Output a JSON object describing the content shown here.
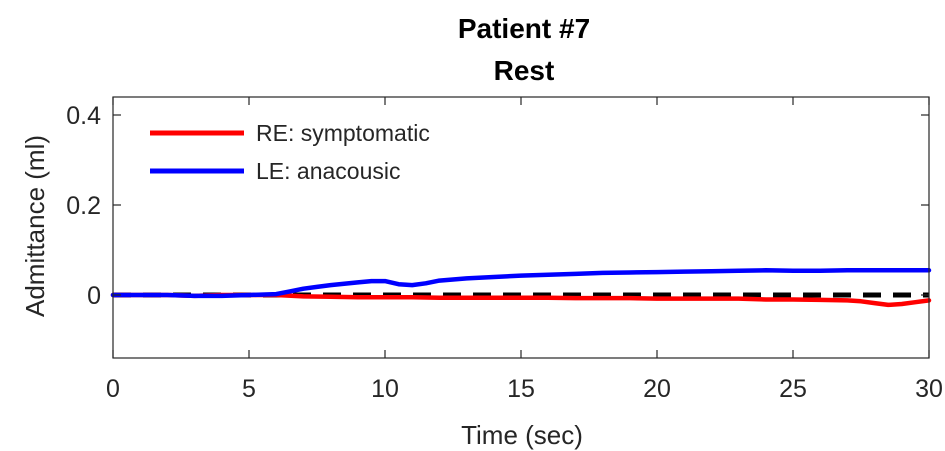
{
  "chart_data": {
    "type": "line",
    "title": "Patient #7",
    "subtitle": "Rest",
    "xlabel": "Time (sec)",
    "ylabel": "Admittance (ml)",
    "xlim": [
      0,
      30
    ],
    "ylim": [
      -0.14,
      0.44
    ],
    "xticks": [
      0,
      5,
      10,
      15,
      20,
      25,
      30
    ],
    "xtick_labels": [
      "0",
      "5",
      "10",
      "15",
      "20",
      "25",
      "30"
    ],
    "yticks": [
      0,
      0.2,
      0.4
    ],
    "ytick_labels": [
      "0",
      "0.2",
      "0.4"
    ],
    "grid": false,
    "legend_position": "top-left",
    "reference_line": {
      "y": 0,
      "style": "dashed",
      "color": "#000000"
    },
    "series": [
      {
        "name": "RE: symptomatic",
        "color": "#ff0000",
        "x": [
          0,
          1,
          2,
          3,
          4,
          5,
          6,
          7,
          8,
          9,
          10,
          11,
          12,
          13,
          14,
          15,
          16,
          17,
          18,
          19,
          20,
          21,
          22,
          23,
          24,
          25,
          26,
          27,
          27.5,
          28,
          28.5,
          29,
          29.5,
          30
        ],
        "y": [
          0,
          0,
          0,
          -0.002,
          0,
          0,
          0,
          -0.003,
          -0.004,
          -0.005,
          -0.005,
          -0.005,
          -0.006,
          -0.006,
          -0.006,
          -0.006,
          -0.006,
          -0.007,
          -0.007,
          -0.007,
          -0.008,
          -0.008,
          -0.008,
          -0.008,
          -0.01,
          -0.01,
          -0.011,
          -0.012,
          -0.014,
          -0.018,
          -0.022,
          -0.02,
          -0.016,
          -0.012
        ]
      },
      {
        "name": "LE: anacousic",
        "color": "#0000ff",
        "x": [
          0,
          1,
          2,
          3,
          4,
          5,
          6,
          6.5,
          7,
          7.5,
          8,
          8.5,
          9,
          9.5,
          10,
          10.5,
          11,
          11.5,
          12,
          13,
          14,
          15,
          16,
          17,
          18,
          19,
          20,
          21,
          22,
          23,
          24,
          25,
          26,
          27,
          28,
          29,
          30
        ],
        "y": [
          0,
          0,
          0,
          -0.002,
          -0.002,
          0,
          0.002,
          0.008,
          0.014,
          0.018,
          0.022,
          0.025,
          0.028,
          0.031,
          0.031,
          0.024,
          0.022,
          0.026,
          0.032,
          0.037,
          0.04,
          0.043,
          0.045,
          0.047,
          0.049,
          0.05,
          0.051,
          0.052,
          0.053,
          0.054,
          0.055,
          0.054,
          0.054,
          0.055,
          0.055,
          0.055,
          0.055
        ]
      }
    ]
  }
}
